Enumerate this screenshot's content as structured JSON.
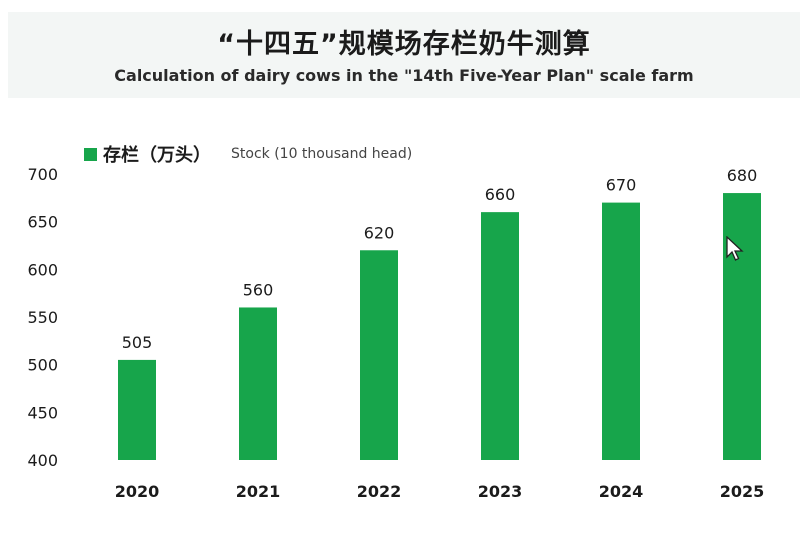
{
  "header": {
    "title": "“十四五”规模场存栏奶牛测算",
    "subtitle": "Calculation of dairy cows in the \"14th Five-Year Plan\" scale farm"
  },
  "legend": {
    "label_cn": "存栏（万头）",
    "label_en": "Stock (10 thousand head)"
  },
  "colors": {
    "bar": "#17a54b"
  },
  "chart_data": {
    "type": "bar",
    "title": "“十四五”规模场存栏奶牛测算",
    "subtitle": "Calculation of dairy cows in the \"14th Five-Year Plan\" scale farm",
    "categories": [
      "2020",
      "2021",
      "2022",
      "2023",
      "2024",
      "2025"
    ],
    "series": [
      {
        "name": "存栏（万头） Stock (10 thousand head)",
        "values": [
          505,
          560,
          620,
          660,
          670,
          680
        ]
      }
    ],
    "ylim": [
      400,
      700
    ],
    "yticks": [
      400,
      450,
      500,
      550,
      600,
      650,
      700
    ],
    "grid": false,
    "legend": "top-left",
    "data_labels": true
  },
  "cursor": {
    "icon": "mouse-pointer-icon"
  }
}
